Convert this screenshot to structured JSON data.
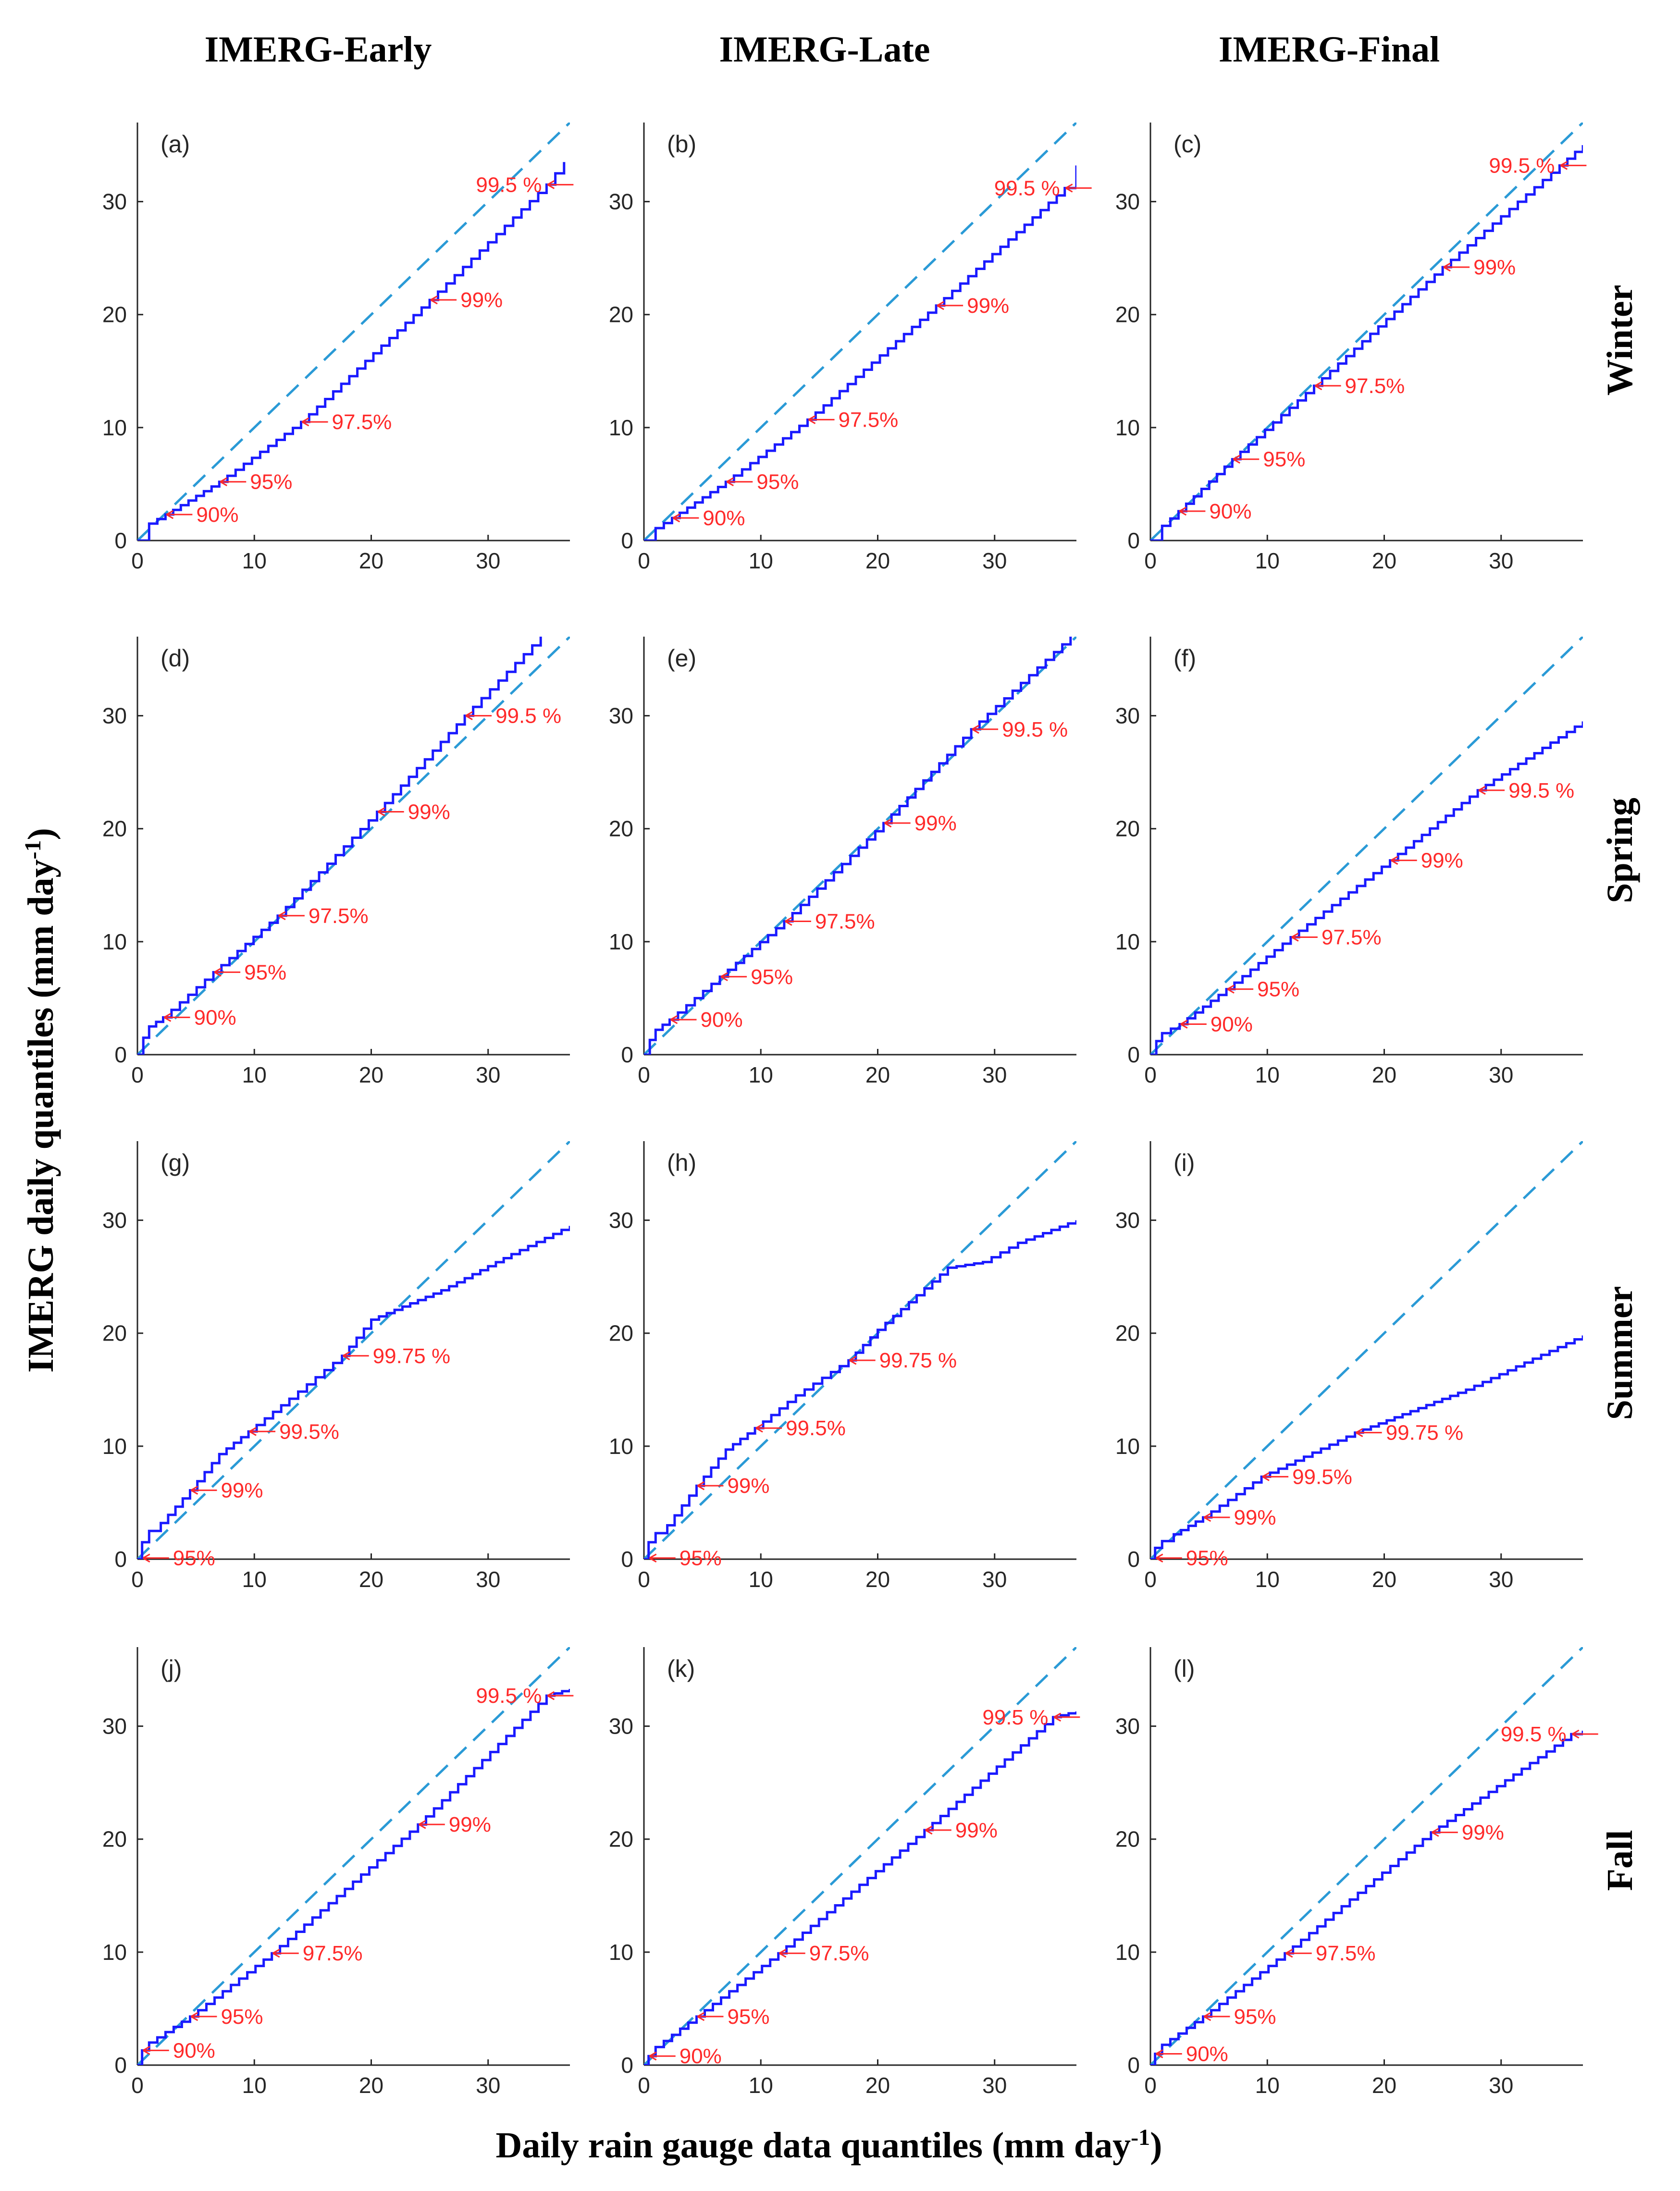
{
  "figure": {
    "column_headers": [
      "IMERG-Early",
      "IMERG-Late",
      "IMERG-Final"
    ],
    "row_headers": [
      "Winter",
      "Spring",
      "Summer",
      "Fall"
    ],
    "ylabel": {
      "main": "IMERG daily quantiles (mm day",
      "sup": "-1",
      "end": ")"
    },
    "xlabel": {
      "main": "Daily rain gauge data quantiles (mm day",
      "sup": "-1",
      "end": ")"
    }
  },
  "colors": {
    "qq_line": "#1a1aff",
    "reference_line": "#2a9ad6",
    "annotation": "#ff2a2a",
    "axis": "#262626"
  },
  "chart_data": [
    {
      "type": "line",
      "label": "(a)",
      "column": 0,
      "row": 0,
      "xlim": [
        0,
        37
      ],
      "ylim": [
        0,
        37
      ],
      "xticks": [
        0,
        10,
        20,
        30
      ],
      "yticks": [
        0,
        10,
        20,
        30
      ],
      "series": [
        {
          "name": "IMERG vs gauge quantiles",
          "x": [
            0,
            1,
            2.4,
            7,
            14,
            25,
            35,
            36.5
          ],
          "y": [
            0,
            1.5,
            2.3,
            5.2,
            10.5,
            21.3,
            31.5,
            33.5
          ]
        },
        {
          "name": "1:1 line",
          "x": [
            0,
            37
          ],
          "y": [
            0,
            37
          ]
        }
      ],
      "annotations": [
        {
          "text": "90%",
          "x": 2.4,
          "y": 2.3
        },
        {
          "text": "95%",
          "x": 7,
          "y": 5.2
        },
        {
          "text": "97.5%",
          "x": 14,
          "y": 10.5
        },
        {
          "text": "99%",
          "x": 25,
          "y": 21.3
        },
        {
          "text": "99.5 %",
          "x": 35,
          "y": 31.5
        }
      ]
    },
    {
      "type": "line",
      "label": "(b)",
      "column": 1,
      "row": 0,
      "xlim": [
        0,
        37
      ],
      "ylim": [
        0,
        37
      ],
      "xticks": [
        0,
        10,
        20,
        30
      ],
      "yticks": [
        0,
        10,
        20,
        30
      ],
      "series": [
        {
          "name": "IMERG vs gauge quantiles",
          "x": [
            0,
            1,
            2.4,
            7,
            14,
            25,
            36,
            37
          ],
          "y": [
            0,
            1.1,
            2.0,
            5.2,
            10.7,
            20.8,
            31.2,
            33.2
          ]
        },
        {
          "name": "1:1 line",
          "x": [
            0,
            37
          ],
          "y": [
            0,
            37
          ]
        }
      ],
      "annotations": [
        {
          "text": "90%",
          "x": 2.4,
          "y": 2.0
        },
        {
          "text": "95%",
          "x": 7,
          "y": 5.2
        },
        {
          "text": "97.5%",
          "x": 14,
          "y": 10.7
        },
        {
          "text": "99%",
          "x": 25,
          "y": 20.8
        },
        {
          "text": "99.5 %",
          "x": 36,
          "y": 31.2
        }
      ]
    },
    {
      "type": "line",
      "label": "(c)",
      "column": 2,
      "row": 0,
      "xlim": [
        0,
        37
      ],
      "ylim": [
        0,
        37
      ],
      "xticks": [
        0,
        10,
        20,
        30
      ],
      "yticks": [
        0,
        10,
        20,
        30
      ],
      "series": [
        {
          "name": "IMERG vs gauge quantiles",
          "x": [
            0,
            1,
            2.4,
            7,
            14,
            25,
            35,
            37
          ],
          "y": [
            0,
            1.3,
            2.6,
            7.2,
            13.7,
            24.2,
            33.2,
            35
          ]
        },
        {
          "name": "1:1 line",
          "x": [
            0,
            37
          ],
          "y": [
            0,
            37
          ]
        }
      ],
      "annotations": [
        {
          "text": "90%",
          "x": 2.4,
          "y": 2.6
        },
        {
          "text": "95%",
          "x": 7,
          "y": 7.2
        },
        {
          "text": "97.5%",
          "x": 14,
          "y": 13.7
        },
        {
          "text": "99%",
          "x": 25,
          "y": 24.2
        },
        {
          "text": "99.5 %",
          "x": 35,
          "y": 33.2
        }
      ]
    },
    {
      "type": "line",
      "label": "(d)",
      "column": 0,
      "row": 1,
      "xlim": [
        0,
        37
      ],
      "ylim": [
        0,
        37
      ],
      "xticks": [
        0,
        10,
        20,
        30
      ],
      "yticks": [
        0,
        10,
        20,
        30
      ],
      "series": [
        {
          "name": "IMERG vs gauge quantiles",
          "x": [
            0,
            0.5,
            1,
            2.2,
            6.5,
            12,
            20.5,
            28,
            34.5
          ],
          "y": [
            0,
            1.5,
            2.5,
            3.3,
            7.3,
            12.3,
            21.5,
            30,
            37
          ]
        },
        {
          "name": "1:1 line",
          "x": [
            0,
            37
          ],
          "y": [
            0,
            37
          ]
        }
      ],
      "annotations": [
        {
          "text": "90%",
          "x": 2.2,
          "y": 3.3
        },
        {
          "text": "95%",
          "x": 6.5,
          "y": 7.3
        },
        {
          "text": "97.5%",
          "x": 12,
          "y": 12.3
        },
        {
          "text": "99%",
          "x": 20.5,
          "y": 21.5
        },
        {
          "text": "99.5 %",
          "x": 28,
          "y": 30
        }
      ]
    },
    {
      "type": "line",
      "label": "(e)",
      "column": 1,
      "row": 1,
      "xlim": [
        0,
        37
      ],
      "ylim": [
        0,
        37
      ],
      "xticks": [
        0,
        10,
        20,
        30
      ],
      "yticks": [
        0,
        10,
        20,
        30
      ],
      "series": [
        {
          "name": "IMERG vs gauge quantiles",
          "x": [
            0,
            0.5,
            1,
            2.2,
            6.5,
            12,
            20.5,
            28,
            36.5
          ],
          "y": [
            0,
            1.3,
            2.2,
            3.1,
            6.9,
            11.8,
            20.5,
            28.8,
            37
          ]
        },
        {
          "name": "1:1 line",
          "x": [
            0,
            37
          ],
          "y": [
            0,
            37
          ]
        }
      ],
      "annotations": [
        {
          "text": "90%",
          "x": 2.2,
          "y": 3.1
        },
        {
          "text": "95%",
          "x": 6.5,
          "y": 6.9
        },
        {
          "text": "97.5%",
          "x": 12,
          "y": 11.8
        },
        {
          "text": "99%",
          "x": 20.5,
          "y": 20.5
        },
        {
          "text": "99.5 %",
          "x": 28,
          "y": 28.8
        }
      ]
    },
    {
      "type": "line",
      "label": "(f)",
      "column": 2,
      "row": 1,
      "xlim": [
        0,
        37
      ],
      "ylim": [
        0,
        37
      ],
      "xticks": [
        0,
        10,
        20,
        30
      ],
      "yticks": [
        0,
        10,
        20,
        30
      ],
      "series": [
        {
          "name": "IMERG vs gauge quantiles",
          "x": [
            0,
            0.5,
            1,
            2.5,
            6.5,
            12,
            20.5,
            28,
            37
          ],
          "y": [
            0,
            1.2,
            1.9,
            2.7,
            5.8,
            10.4,
            17.2,
            23.4,
            29.5
          ]
        },
        {
          "name": "1:1 line",
          "x": [
            0,
            37
          ],
          "y": [
            0,
            37
          ]
        }
      ],
      "annotations": [
        {
          "text": "90%",
          "x": 2.5,
          "y": 2.7
        },
        {
          "text": "95%",
          "x": 6.5,
          "y": 5.8
        },
        {
          "text": "97.5%",
          "x": 12,
          "y": 10.4
        },
        {
          "text": "99%",
          "x": 20.5,
          "y": 17.2
        },
        {
          "text": "99.5 %",
          "x": 28,
          "y": 23.4
        }
      ]
    },
    {
      "type": "line",
      "label": "(g)",
      "column": 0,
      "row": 2,
      "xlim": [
        0,
        37
      ],
      "ylim": [
        0,
        37
      ],
      "xticks": [
        0,
        10,
        20,
        30
      ],
      "yticks": [
        0,
        10,
        20,
        30
      ],
      "series": [
        {
          "name": "IMERG vs gauge quantiles",
          "x": [
            0,
            0.4,
            1,
            2,
            4.5,
            7,
            9.5,
            13,
            17.5,
            20,
            26,
            32,
            37
          ],
          "y": [
            0,
            1.5,
            2.5,
            3.2,
            6.1,
            9.3,
            11.3,
            14.2,
            18,
            21.2,
            23.8,
            27,
            29.5
          ]
        },
        {
          "name": "1:1 line",
          "x": [
            0,
            37
          ],
          "y": [
            0,
            37
          ]
        }
      ],
      "annotations": [
        {
          "text": "95%",
          "x": 0.4,
          "y": 0.1
        },
        {
          "text": "99%",
          "x": 4.5,
          "y": 6.1
        },
        {
          "text": "99.5%",
          "x": 9.5,
          "y": 11.3
        },
        {
          "text": "99.75 %",
          "x": 17.5,
          "y": 18
        }
      ]
    },
    {
      "type": "line",
      "label": "(h)",
      "column": 1,
      "row": 2,
      "xlim": [
        0,
        37
      ],
      "ylim": [
        0,
        37
      ],
      "xticks": [
        0,
        10,
        20,
        30
      ],
      "yticks": [
        0,
        10,
        20,
        30
      ],
      "series": [
        {
          "name": "IMERG vs gauge quantiles",
          "x": [
            0,
            0.4,
            1,
            2,
            4.5,
            7,
            9.5,
            13,
            17.5,
            20,
            26,
            29,
            32,
            37
          ],
          "y": [
            0,
            1.5,
            2.3,
            3.0,
            6.5,
            9.7,
            11.6,
            14.5,
            17.6,
            20.3,
            25.8,
            26.3,
            28,
            30
          ]
        },
        {
          "name": "1:1 line",
          "x": [
            0,
            37
          ],
          "y": [
            0,
            37
          ]
        }
      ],
      "annotations": [
        {
          "text": "95%",
          "x": 0.4,
          "y": 0.1
        },
        {
          "text": "99%",
          "x": 4.5,
          "y": 6.5
        },
        {
          "text": "99.5%",
          "x": 9.5,
          "y": 11.6
        },
        {
          "text": "99.75 %",
          "x": 17.5,
          "y": 17.6
        }
      ]
    },
    {
      "type": "line",
      "label": "(i)",
      "column": 2,
      "row": 2,
      "xlim": [
        0,
        37
      ],
      "ylim": [
        0,
        37
      ],
      "xticks": [
        0,
        10,
        20,
        30
      ],
      "yticks": [
        0,
        10,
        20,
        30
      ],
      "series": [
        {
          "name": "IMERG vs gauge quantiles",
          "x": [
            0,
            0.4,
            1,
            2,
            4.5,
            9.5,
            17.5,
            27,
            37
          ],
          "y": [
            0,
            1.0,
            1.6,
            2.2,
            3.7,
            7.3,
            11.2,
            15,
            19.8
          ]
        },
        {
          "name": "1:1 line",
          "x": [
            0,
            37
          ],
          "y": [
            0,
            37
          ]
        }
      ],
      "annotations": [
        {
          "text": "95%",
          "x": 0.4,
          "y": 0.1
        },
        {
          "text": "99%",
          "x": 4.5,
          "y": 3.7
        },
        {
          "text": "99.5%",
          "x": 9.5,
          "y": 7.3
        },
        {
          "text": "99.75 %",
          "x": 17.5,
          "y": 11.2
        }
      ]
    },
    {
      "type": "line",
      "label": "(j)",
      "column": 0,
      "row": 3,
      "xlim": [
        0,
        37
      ],
      "ylim": [
        0,
        37
      ],
      "xticks": [
        0,
        10,
        20,
        30
      ],
      "yticks": [
        0,
        10,
        20,
        30
      ],
      "series": [
        {
          "name": "IMERG vs gauge quantiles",
          "x": [
            0,
            0.4,
            1,
            4.5,
            11.5,
            24,
            35,
            37
          ],
          "y": [
            0,
            1.3,
            2.0,
            4.3,
            9.9,
            21.3,
            32.7,
            33.3
          ]
        },
        {
          "name": "1:1 line",
          "x": [
            0,
            37
          ],
          "y": [
            0,
            37
          ]
        }
      ],
      "annotations": [
        {
          "text": "90%",
          "x": 0.4,
          "y": 1.3
        },
        {
          "text": "95%",
          "x": 4.5,
          "y": 4.3
        },
        {
          "text": "97.5%",
          "x": 11.5,
          "y": 9.9
        },
        {
          "text": "99%",
          "x": 24,
          "y": 21.3
        },
        {
          "text": "99.5 %",
          "x": 35,
          "y": 32.7
        }
      ]
    },
    {
      "type": "line",
      "label": "(k)",
      "column": 1,
      "row": 3,
      "xlim": [
        0,
        37
      ],
      "ylim": [
        0,
        37
      ],
      "xticks": [
        0,
        10,
        20,
        30
      ],
      "yticks": [
        0,
        10,
        20,
        30
      ],
      "series": [
        {
          "name": "IMERG vs gauge quantiles",
          "x": [
            0,
            0.4,
            1,
            4.5,
            11.5,
            24,
            35,
            37
          ],
          "y": [
            0,
            0.8,
            1.6,
            4.3,
            9.9,
            20.8,
            30.8,
            31.3
          ]
        },
        {
          "name": "1:1 line",
          "x": [
            0,
            37
          ],
          "y": [
            0,
            37
          ]
        }
      ],
      "annotations": [
        {
          "text": "90%",
          "x": 0.4,
          "y": 0.8
        },
        {
          "text": "95%",
          "x": 4.5,
          "y": 4.3
        },
        {
          "text": "97.5%",
          "x": 11.5,
          "y": 9.9
        },
        {
          "text": "99%",
          "x": 24,
          "y": 20.8
        },
        {
          "text": "99.5 %",
          "x": 35,
          "y": 30.8
        }
      ]
    },
    {
      "type": "line",
      "label": "(l)",
      "column": 2,
      "row": 3,
      "xlim": [
        0,
        37
      ],
      "ylim": [
        0,
        37
      ],
      "xticks": [
        0,
        10,
        20,
        30
      ],
      "yticks": [
        0,
        10,
        20,
        30
      ],
      "series": [
        {
          "name": "IMERG vs gauge quantiles",
          "x": [
            0,
            0.4,
            1,
            4.5,
            11.5,
            24,
            36,
            37
          ],
          "y": [
            0,
            1.0,
            1.8,
            4.3,
            9.9,
            20.6,
            29.3,
            29.6
          ]
        },
        {
          "name": "1:1 line",
          "x": [
            0,
            37
          ],
          "y": [
            0,
            37
          ]
        }
      ],
      "annotations": [
        {
          "text": "90%",
          "x": 0.4,
          "y": 1.0
        },
        {
          "text": "95%",
          "x": 4.5,
          "y": 4.3
        },
        {
          "text": "97.5%",
          "x": 11.5,
          "y": 9.9
        },
        {
          "text": "99%",
          "x": 24,
          "y": 20.6
        },
        {
          "text": "99.5 %",
          "x": 36,
          "y": 29.3
        }
      ]
    }
  ]
}
